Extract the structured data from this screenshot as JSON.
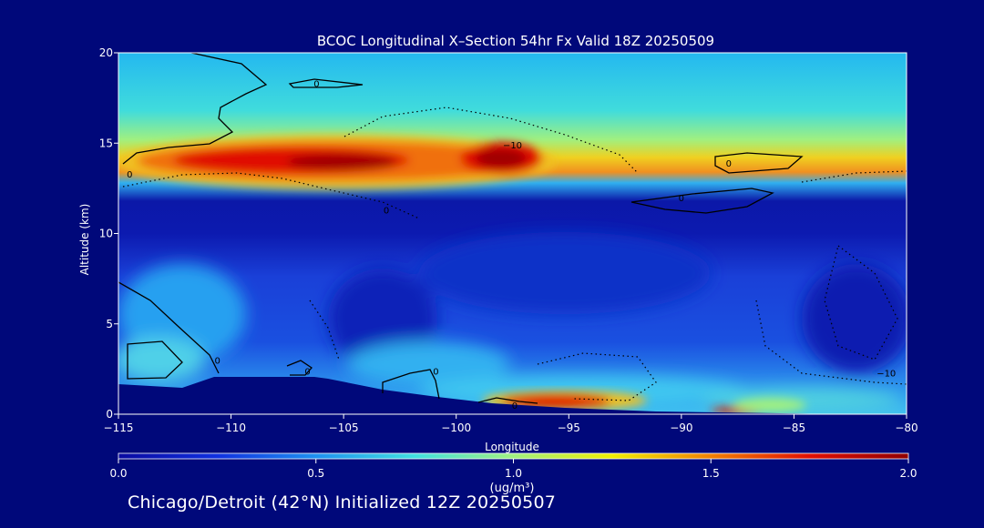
{
  "chart_data": {
    "type": "heatmap",
    "title": "BCOC Longitudinal X–Section 54hr  Fx Valid 18Z 20250509",
    "xlabel": "Longitude",
    "ylabel": "Altitude (km)",
    "xlim": [
      -115,
      -80
    ],
    "ylim": [
      0,
      20
    ],
    "x_ticks": [
      "−115",
      "−110",
      "−105",
      "−100",
      "−95",
      "−90",
      "−85",
      "−80"
    ],
    "y_ticks": [
      "0",
      "5",
      "10",
      "15",
      "20"
    ],
    "colorbar": {
      "label": "(ug/m³)",
      "ticks": [
        "0.0",
        "0.5",
        "1.0",
        "1.5",
        "2.0"
      ],
      "range": [
        0,
        2
      ],
      "colors": [
        "#0a0aa0",
        "#1030e0",
        "#1e90f0",
        "#40e0e0",
        "#a0f080",
        "#f0f000",
        "#f08000",
        "#e01000",
        "#900000"
      ]
    },
    "concentration_features": [
      {
        "feature": "upper plume core",
        "lon": -105.5,
        "alt_km": 14.0,
        "value": 2.0
      },
      {
        "feature": "upper plume core",
        "lon": -97.5,
        "alt_km": 14.0,
        "value": 2.0
      },
      {
        "feature": "near-surface plume",
        "lon": -96,
        "alt_km": 0.8,
        "value": 2.0
      },
      {
        "feature": "background upper troposphere",
        "lon": -90,
        "alt_km": 18.5,
        "value": 0.5
      },
      {
        "feature": "mid-level minimum",
        "lon": -95,
        "alt_km": 11.0,
        "value": 0.05
      }
    ],
    "contour_labels": [
      {
        "text": "0",
        "lon": -106.2,
        "alt_km": 18.3
      },
      {
        "text": "0",
        "lon": -114.5,
        "alt_km": 13.3
      },
      {
        "text": "−10",
        "lon": -97.5,
        "alt_km": 14.9
      },
      {
        "text": "0",
        "lon": -87.9,
        "alt_km": 13.9
      },
      {
        "text": "0",
        "lon": -90.0,
        "alt_km": 12.0
      },
      {
        "text": "0",
        "lon": -103.1,
        "alt_km": 11.3
      },
      {
        "text": "0",
        "lon": -110.6,
        "alt_km": 3.0
      },
      {
        "text": "0",
        "lon": -106.6,
        "alt_km": 2.4
      },
      {
        "text": "0",
        "lon": -100.9,
        "alt_km": 2.4
      },
      {
        "text": "0",
        "lon": -97.4,
        "alt_km": 0.5
      },
      {
        "text": "−10",
        "lon": -80.9,
        "alt_km": 2.3
      }
    ],
    "grid": false,
    "legend": "colorbar-bottom"
  },
  "footer": "Chicago/Detroit (42°N) Initialized 12Z 20250507"
}
